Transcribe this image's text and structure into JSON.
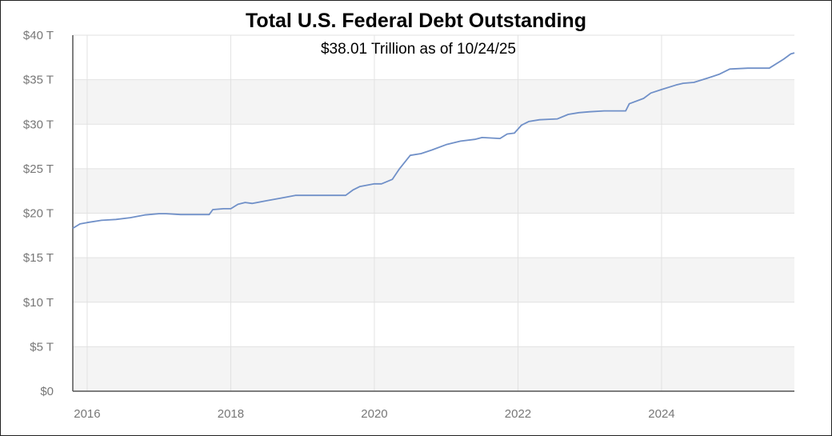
{
  "chart_data": {
    "type": "line",
    "title": "Total U.S. Federal Debt Outstanding",
    "subtitle": "$38.01 Trillion as of 10/24/25",
    "xlabel": "",
    "ylabel": "",
    "xlim": [
      2015.8,
      2025.85
    ],
    "ylim": [
      0,
      40
    ],
    "y_ticks": [
      0,
      5,
      10,
      15,
      20,
      25,
      30,
      35,
      40
    ],
    "y_tick_labels": [
      "$0",
      "$5 T",
      "$10 T",
      "$15 T",
      "$20 T",
      "$25 T",
      "$30 T",
      "$35 T",
      "$40 T"
    ],
    "x_ticks": [
      2016,
      2018,
      2020,
      2022,
      2024
    ],
    "x_tick_labels": [
      "2016",
      "2018",
      "2020",
      "2022",
      "2024"
    ],
    "grid": true,
    "alternating_bands": true,
    "line_color": "#7090c8",
    "series": [
      {
        "x": [
          2015.8,
          2015.9,
          2016.0,
          2016.2,
          2016.4,
          2016.6,
          2016.8,
          2017.0,
          2017.1,
          2017.3,
          2017.5,
          2017.7,
          2017.75,
          2017.9,
          2018.0,
          2018.1,
          2018.2,
          2018.3,
          2018.5,
          2018.7,
          2018.9,
          2019.0,
          2019.2,
          2019.4,
          2019.6,
          2019.7,
          2019.8,
          2020.0,
          2020.1,
          2020.25,
          2020.35,
          2020.5,
          2020.65,
          2020.8,
          2021.0,
          2021.2,
          2021.4,
          2021.5,
          2021.75,
          2021.85,
          2021.95,
          2022.05,
          2022.15,
          2022.3,
          2022.55,
          2022.7,
          2022.85,
          2023.0,
          2023.2,
          2023.5,
          2023.55,
          2023.75,
          2023.85,
          2024.0,
          2024.2,
          2024.3,
          2024.45,
          2024.65,
          2024.8,
          2024.95,
          2025.2,
          2025.5,
          2025.7,
          2025.8,
          2025.85
        ],
        "y": [
          18.3,
          18.8,
          18.95,
          19.2,
          19.3,
          19.5,
          19.8,
          19.95,
          19.95,
          19.85,
          19.85,
          19.85,
          20.4,
          20.5,
          20.5,
          21.0,
          21.2,
          21.1,
          21.4,
          21.7,
          22.0,
          22.0,
          22.0,
          22.0,
          22.0,
          22.6,
          23.0,
          23.3,
          23.3,
          23.8,
          25.0,
          26.5,
          26.7,
          27.1,
          27.7,
          28.1,
          28.3,
          28.5,
          28.4,
          28.9,
          29.0,
          29.9,
          30.3,
          30.5,
          30.6,
          31.1,
          31.3,
          31.4,
          31.5,
          31.5,
          32.3,
          32.9,
          33.5,
          33.9,
          34.4,
          34.6,
          34.7,
          35.2,
          35.6,
          36.2,
          36.3,
          36.3,
          37.3,
          37.9,
          38.01
        ]
      }
    ]
  }
}
